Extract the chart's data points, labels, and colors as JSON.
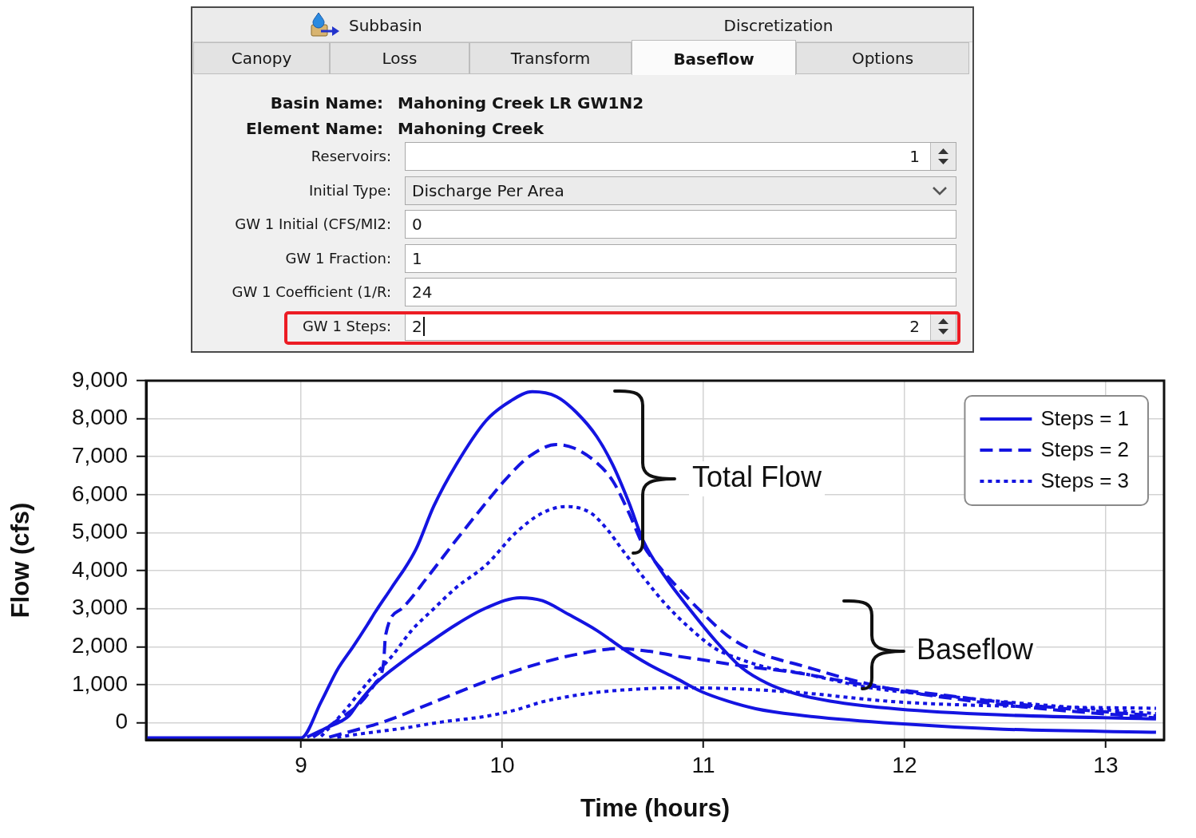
{
  "chart_data": [
    {
      "type": "other",
      "annotations": [
        "Subbasin",
        "Discretization",
        "Canopy",
        "Loss",
        "Transform",
        "Baseflow",
        "Options",
        "Basin Name:",
        "Mahoning Creek LR GW1N2",
        "Element Name:",
        "Mahoning Creek",
        "Reservoirs:",
        "1",
        "Initial Type:",
        "Discharge Per Area",
        "GW 1 Initial (CFS/MI2:",
        "0",
        "GW 1 Fraction:",
        "1",
        "GW 1 Coefficient (1/R:",
        "24",
        "GW 1 Steps:",
        "2",
        "2"
      ]
    },
    {
      "type": "line",
      "xlabel": "Time (hours)",
      "ylabel": "Flow (cfs)",
      "xlim": [
        8.23,
        13.29
      ],
      "ylim": [
        -450,
        9000
      ],
      "xticks": [
        9,
        10,
        11,
        12,
        13
      ],
      "yticks": [
        0,
        {
          "value": 1000,
          "label": "1,000"
        },
        {
          "value": 2000,
          "label": "2,000"
        },
        {
          "value": 3000,
          "label": "3,000"
        },
        {
          "value": 4000,
          "label": "4,000"
        },
        {
          "value": 5000,
          "label": "5,000"
        },
        {
          "value": 6000,
          "label": "6,000"
        },
        {
          "value": 7000,
          "label": "7,000"
        },
        {
          "value": 8000,
          "label": "8,000"
        },
        {
          "value": 9000,
          "label": "9,000"
        }
      ],
      "grid": true,
      "legend": "top right",
      "marker": "none",
      "annotations": [
        "Total Flow",
        "Baseflow"
      ],
      "series": [
        {
          "name": "Steps = 1",
          "color": "#1414e1",
          "line_style": "solid",
          "x": [
            8.23,
            9.0,
            9.1,
            9.18,
            9.26,
            9.33,
            9.37,
            9.45,
            9.57,
            9.66,
            9.77,
            9.92,
            10.04,
            10.15,
            10.27,
            10.37,
            10.47,
            10.55,
            10.63,
            10.7,
            10.81,
            10.93,
            11.06,
            11.19,
            11.32,
            11.46,
            11.63,
            11.97,
            12.46,
            13.25
          ],
          "values": [
            -400,
            -400,
            550,
            1390,
            2010,
            2580,
            2920,
            3550,
            4550,
            5700,
            6780,
            7950,
            8460,
            8710,
            8580,
            8160,
            7530,
            6780,
            5790,
            4800,
            3840,
            3000,
            2160,
            1450,
            1030,
            760,
            570,
            360,
            210,
            100
          ]
        },
        {
          "name": "Steps = 2",
          "color": "#1414e1",
          "line_style": "dashed",
          "x": [
            9.06,
            9.18,
            9.3,
            9.37,
            9.41,
            9.42,
            9.5,
            9.63,
            9.77,
            9.92,
            10.01,
            10.13,
            10.27,
            10.36,
            10.47,
            10.55,
            10.63,
            10.7,
            10.78,
            10.86,
            10.99,
            11.12,
            11.26,
            11.39,
            11.47,
            11.7,
            11.96,
            12.22,
            12.62,
            13.25
          ],
          "values": [
            -380,
            60,
            550,
            1050,
            1550,
            2290,
            3000,
            3840,
            4800,
            5790,
            6360,
            6990,
            7320,
            7220,
            6840,
            6360,
            5520,
            4680,
            4110,
            3630,
            2920,
            2290,
            1870,
            1640,
            1530,
            1180,
            860,
            650,
            400,
            130
          ]
        },
        {
          "name": "Steps = 3",
          "color": "#1414e1",
          "line_style": "dotted",
          "x": [
            9.1,
            9.21,
            9.34,
            9.45,
            9.55,
            9.66,
            9.77,
            9.92,
            10.07,
            10.2,
            10.32,
            10.44,
            10.52,
            10.6,
            10.7,
            10.81,
            10.93,
            11.06,
            11.19,
            11.32,
            11.47,
            11.83,
            12.22,
            12.75,
            13.25
          ],
          "values": [
            -360,
            270,
            1110,
            1740,
            2430,
            3000,
            3550,
            4150,
            5010,
            5520,
            5690,
            5520,
            5100,
            4530,
            3840,
            3130,
            2500,
            1950,
            1660,
            1450,
            1320,
            920,
            690,
            440,
            240
          ]
        },
        {
          "color": "#1414e1",
          "line_style": "solid",
          "x": [
            9.03,
            9.12,
            9.24,
            9.28,
            9.37,
            9.5,
            9.63,
            9.77,
            9.92,
            10.09,
            10.2,
            10.33,
            10.47,
            10.6,
            10.73,
            10.86,
            10.99,
            11.12,
            11.26,
            11.46,
            11.96,
            12.49,
            13.25
          ],
          "values": [
            -380,
            -150,
            190,
            480,
            1030,
            1590,
            2080,
            2580,
            3020,
            3290,
            3210,
            2850,
            2430,
            1950,
            1530,
            1180,
            820,
            570,
            370,
            210,
            -20,
            -170,
            -250
          ]
        },
        {
          "color": "#1414e1",
          "line_style": "dashed",
          "x": [
            9.14,
            9.3,
            9.42,
            9.65,
            9.9,
            10.14,
            10.37,
            10.58,
            10.73,
            10.86,
            10.99,
            11.12,
            11.26,
            11.46,
            11.83,
            12.22,
            12.62,
            13.25
          ],
          "values": [
            -380,
            -150,
            40,
            520,
            1050,
            1490,
            1800,
            1950,
            1880,
            1760,
            1660,
            1550,
            1450,
            1320,
            970,
            710,
            460,
            180
          ]
        },
        {
          "color": "#1414e1",
          "line_style": "dotted",
          "x": [
            9.18,
            9.3,
            9.5,
            9.7,
            9.92,
            10.07,
            10.2,
            10.33,
            10.47,
            10.6,
            10.86,
            11.12,
            11.46,
            11.96,
            12.49,
            13.25
          ],
          "values": [
            -380,
            -290,
            -150,
            20,
            170,
            340,
            550,
            690,
            800,
            860,
            920,
            900,
            800,
            550,
            440,
            380
          ]
        }
      ]
    }
  ]
}
